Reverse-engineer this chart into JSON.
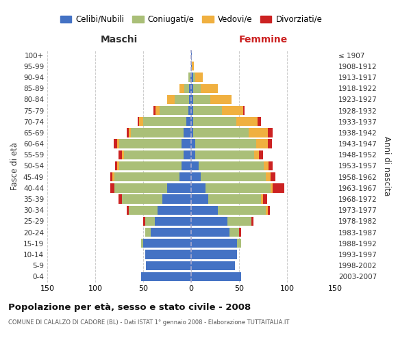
{
  "age_groups": [
    "0-4",
    "5-9",
    "10-14",
    "15-19",
    "20-24",
    "25-29",
    "30-34",
    "35-39",
    "40-44",
    "45-49",
    "50-54",
    "55-59",
    "60-64",
    "65-69",
    "70-74",
    "75-79",
    "80-84",
    "85-89",
    "90-94",
    "95-99",
    "100+"
  ],
  "birth_years": [
    "2003-2007",
    "1998-2002",
    "1993-1997",
    "1988-1992",
    "1983-1987",
    "1978-1982",
    "1973-1977",
    "1968-1972",
    "1963-1967",
    "1958-1962",
    "1953-1957",
    "1948-1952",
    "1943-1947",
    "1938-1942",
    "1933-1937",
    "1928-1932",
    "1923-1927",
    "1918-1922",
    "1913-1917",
    "1908-1912",
    "≤ 1907"
  ],
  "colors": {
    "celibi": "#4472C4",
    "coniugati": "#AABF78",
    "vedovi": "#F0B040",
    "divorziati": "#CC2222"
  },
  "maschi": {
    "celibi": [
      52,
      47,
      48,
      50,
      42,
      38,
      35,
      30,
      25,
      12,
      10,
      8,
      10,
      8,
      5,
      3,
      2,
      2,
      1,
      0,
      0
    ],
    "coniugati": [
      0,
      0,
      0,
      2,
      6,
      10,
      30,
      42,
      55,
      68,
      65,
      62,
      65,
      55,
      45,
      30,
      15,
      5,
      2,
      0,
      0
    ],
    "vedovi": [
      0,
      0,
      0,
      0,
      0,
      0,
      0,
      0,
      0,
      2,
      2,
      2,
      2,
      2,
      4,
      4,
      8,
      5,
      0,
      0,
      0
    ],
    "divorziati": [
      0,
      0,
      0,
      0,
      0,
      2,
      2,
      4,
      4,
      2,
      2,
      4,
      4,
      2,
      2,
      2,
      0,
      0,
      0,
      0,
      0
    ]
  },
  "femmine": {
    "celibi": [
      52,
      46,
      48,
      48,
      40,
      38,
      28,
      18,
      15,
      10,
      8,
      4,
      4,
      2,
      2,
      2,
      2,
      2,
      2,
      1,
      1
    ],
    "coniugati": [
      0,
      0,
      0,
      4,
      10,
      25,
      50,
      55,
      68,
      68,
      68,
      62,
      64,
      58,
      45,
      30,
      18,
      8,
      2,
      0,
      0
    ],
    "vedovi": [
      0,
      0,
      0,
      0,
      0,
      0,
      2,
      2,
      2,
      5,
      5,
      5,
      12,
      20,
      22,
      22,
      22,
      18,
      8,
      2,
      0
    ],
    "divorziati": [
      0,
      0,
      0,
      0,
      2,
      2,
      2,
      4,
      12,
      5,
      4,
      4,
      4,
      5,
      4,
      2,
      0,
      0,
      0,
      0,
      0
    ]
  },
  "title": "Popolazione per età, sesso e stato civile - 2008",
  "subtitle": "COMUNE DI CALALZO DI CADORE (BL) - Dati ISTAT 1° gennaio 2008 - Elaborazione TUTTAITALIA.IT",
  "xlabel_left": "Maschi",
  "xlabel_right": "Femmine",
  "ylabel_left": "Fasce di età",
  "ylabel_right": "Anni di nascita",
  "xlim": 150,
  "legend_labels": [
    "Celibi/Nubili",
    "Coniugati/e",
    "Vedovi/e",
    "Divorziati/e"
  ],
  "background_color": "#ffffff",
  "grid_color": "#cccccc",
  "maschi_label_color": "#333333",
  "femmine_label_color": "#CC2222"
}
